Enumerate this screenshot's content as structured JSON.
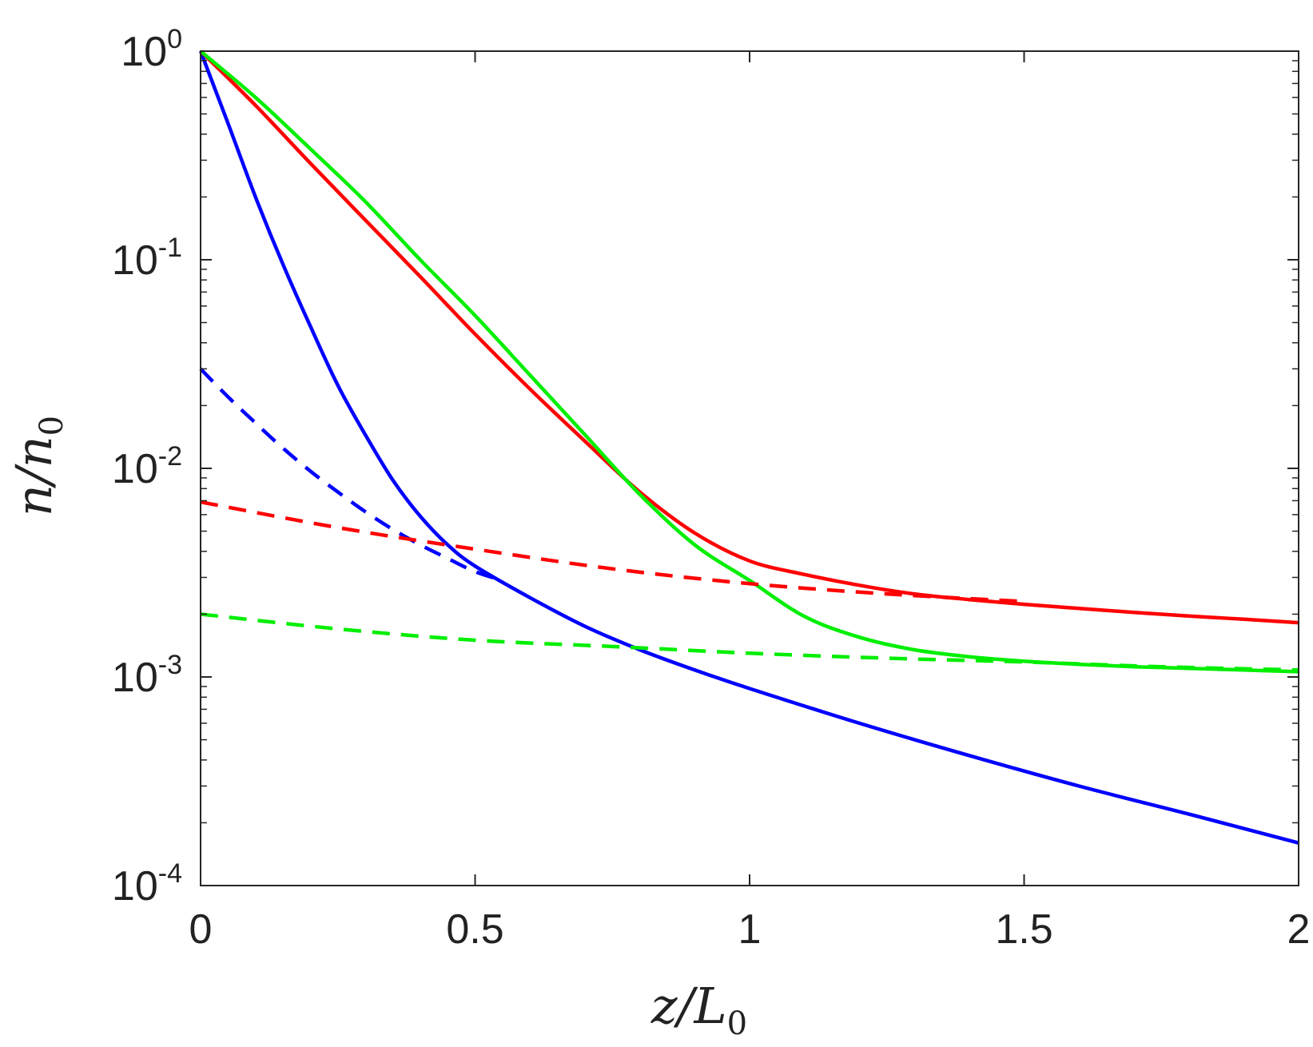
{
  "chart_data": {
    "type": "line",
    "xlabel": {
      "main": "z/L",
      "sub": "0"
    },
    "ylabel": {
      "main": "n/n",
      "sub": "0"
    },
    "xlim": [
      0,
      2
    ],
    "ylim": [
      0.0001,
      1
    ],
    "yscale": "log",
    "grid": false,
    "x_ticks": [
      {
        "value": 0,
        "label": "0"
      },
      {
        "value": 0.5,
        "label": "0.5"
      },
      {
        "value": 1,
        "label": "1"
      },
      {
        "value": 1.5,
        "label": "1.5"
      },
      {
        "value": 2,
        "label": "2"
      }
    ],
    "y_ticks": [
      {
        "value": 1,
        "base": "10",
        "exp": "0"
      },
      {
        "value": 0.1,
        "base": "10",
        "exp": "-1"
      },
      {
        "value": 0.01,
        "base": "10",
        "exp": "-2"
      },
      {
        "value": 0.001,
        "base": "10",
        "exp": "-3"
      },
      {
        "value": 0.0001,
        "base": "10",
        "exp": "-4"
      }
    ],
    "series": [
      {
        "color": "#0000ff",
        "style": "solid",
        "x": [
          0,
          0.05,
          0.1,
          0.15,
          0.2,
          0.25,
          0.3,
          0.35,
          0.4,
          0.45,
          0.5,
          0.6,
          0.7,
          0.8,
          0.9,
          1.0,
          1.2,
          1.4,
          1.6,
          1.8,
          2.0
        ],
        "y": [
          1,
          0.45,
          0.2,
          0.095,
          0.048,
          0.025,
          0.0145,
          0.0088,
          0.0059,
          0.0043,
          0.0034,
          0.0024,
          0.00175,
          0.00135,
          0.00108,
          0.00088,
          0.0006,
          0.00042,
          0.0003,
          0.00022,
          0.00016
        ]
      },
      {
        "color": "#ff0000",
        "style": "solid",
        "x": [
          0,
          0.1,
          0.2,
          0.3,
          0.4,
          0.5,
          0.6,
          0.7,
          0.8,
          0.9,
          1.0,
          1.1,
          1.2,
          1.3,
          1.4,
          1.5,
          1.6,
          1.7,
          1.8,
          1.9,
          2.0
        ],
        "y": [
          1,
          0.55,
          0.29,
          0.155,
          0.083,
          0.044,
          0.024,
          0.0135,
          0.0077,
          0.0049,
          0.0036,
          0.0031,
          0.00275,
          0.0025,
          0.00235,
          0.00223,
          0.00213,
          0.00204,
          0.00196,
          0.00189,
          0.00182
        ]
      },
      {
        "color": "#00ee00",
        "style": "solid",
        "x": [
          0,
          0.1,
          0.2,
          0.3,
          0.4,
          0.5,
          0.6,
          0.7,
          0.8,
          0.9,
          1.0,
          1.1,
          1.2,
          1.3,
          1.4,
          1.5,
          1.6,
          1.7,
          1.8,
          1.9,
          2.0
        ],
        "y": [
          1,
          0.6,
          0.34,
          0.19,
          0.1,
          0.054,
          0.028,
          0.0145,
          0.0075,
          0.0043,
          0.0029,
          0.00195,
          0.00155,
          0.00135,
          0.00125,
          0.00119,
          0.00115,
          0.00112,
          0.0011,
          0.00108,
          0.00106
        ]
      },
      {
        "color": "#0000ff",
        "style": "dashed",
        "x": [
          0,
          0.05,
          0.1,
          0.15,
          0.2,
          0.25,
          0.3,
          0.35,
          0.4,
          0.45,
          0.5,
          0.55
        ],
        "y": [
          0.03,
          0.022,
          0.0165,
          0.0125,
          0.0097,
          0.0077,
          0.0062,
          0.0051,
          0.0043,
          0.0037,
          0.0032,
          0.0029
        ]
      },
      {
        "color": "#ff0000",
        "style": "dashed",
        "x": [
          0,
          0.25,
          0.5,
          0.75,
          1.0,
          1.25,
          1.5
        ],
        "y": [
          0.0069,
          0.0052,
          0.0041,
          0.0033,
          0.0028,
          0.0025,
          0.0023
        ]
      },
      {
        "color": "#00ee00",
        "style": "dashed",
        "x": [
          0,
          0.25,
          0.5,
          0.75,
          1.0,
          1.25,
          1.5,
          1.75,
          2.0
        ],
        "y": [
          0.002,
          0.0017,
          0.0015,
          0.0014,
          0.0013,
          0.00123,
          0.00118,
          0.00112,
          0.00108
        ]
      }
    ]
  }
}
